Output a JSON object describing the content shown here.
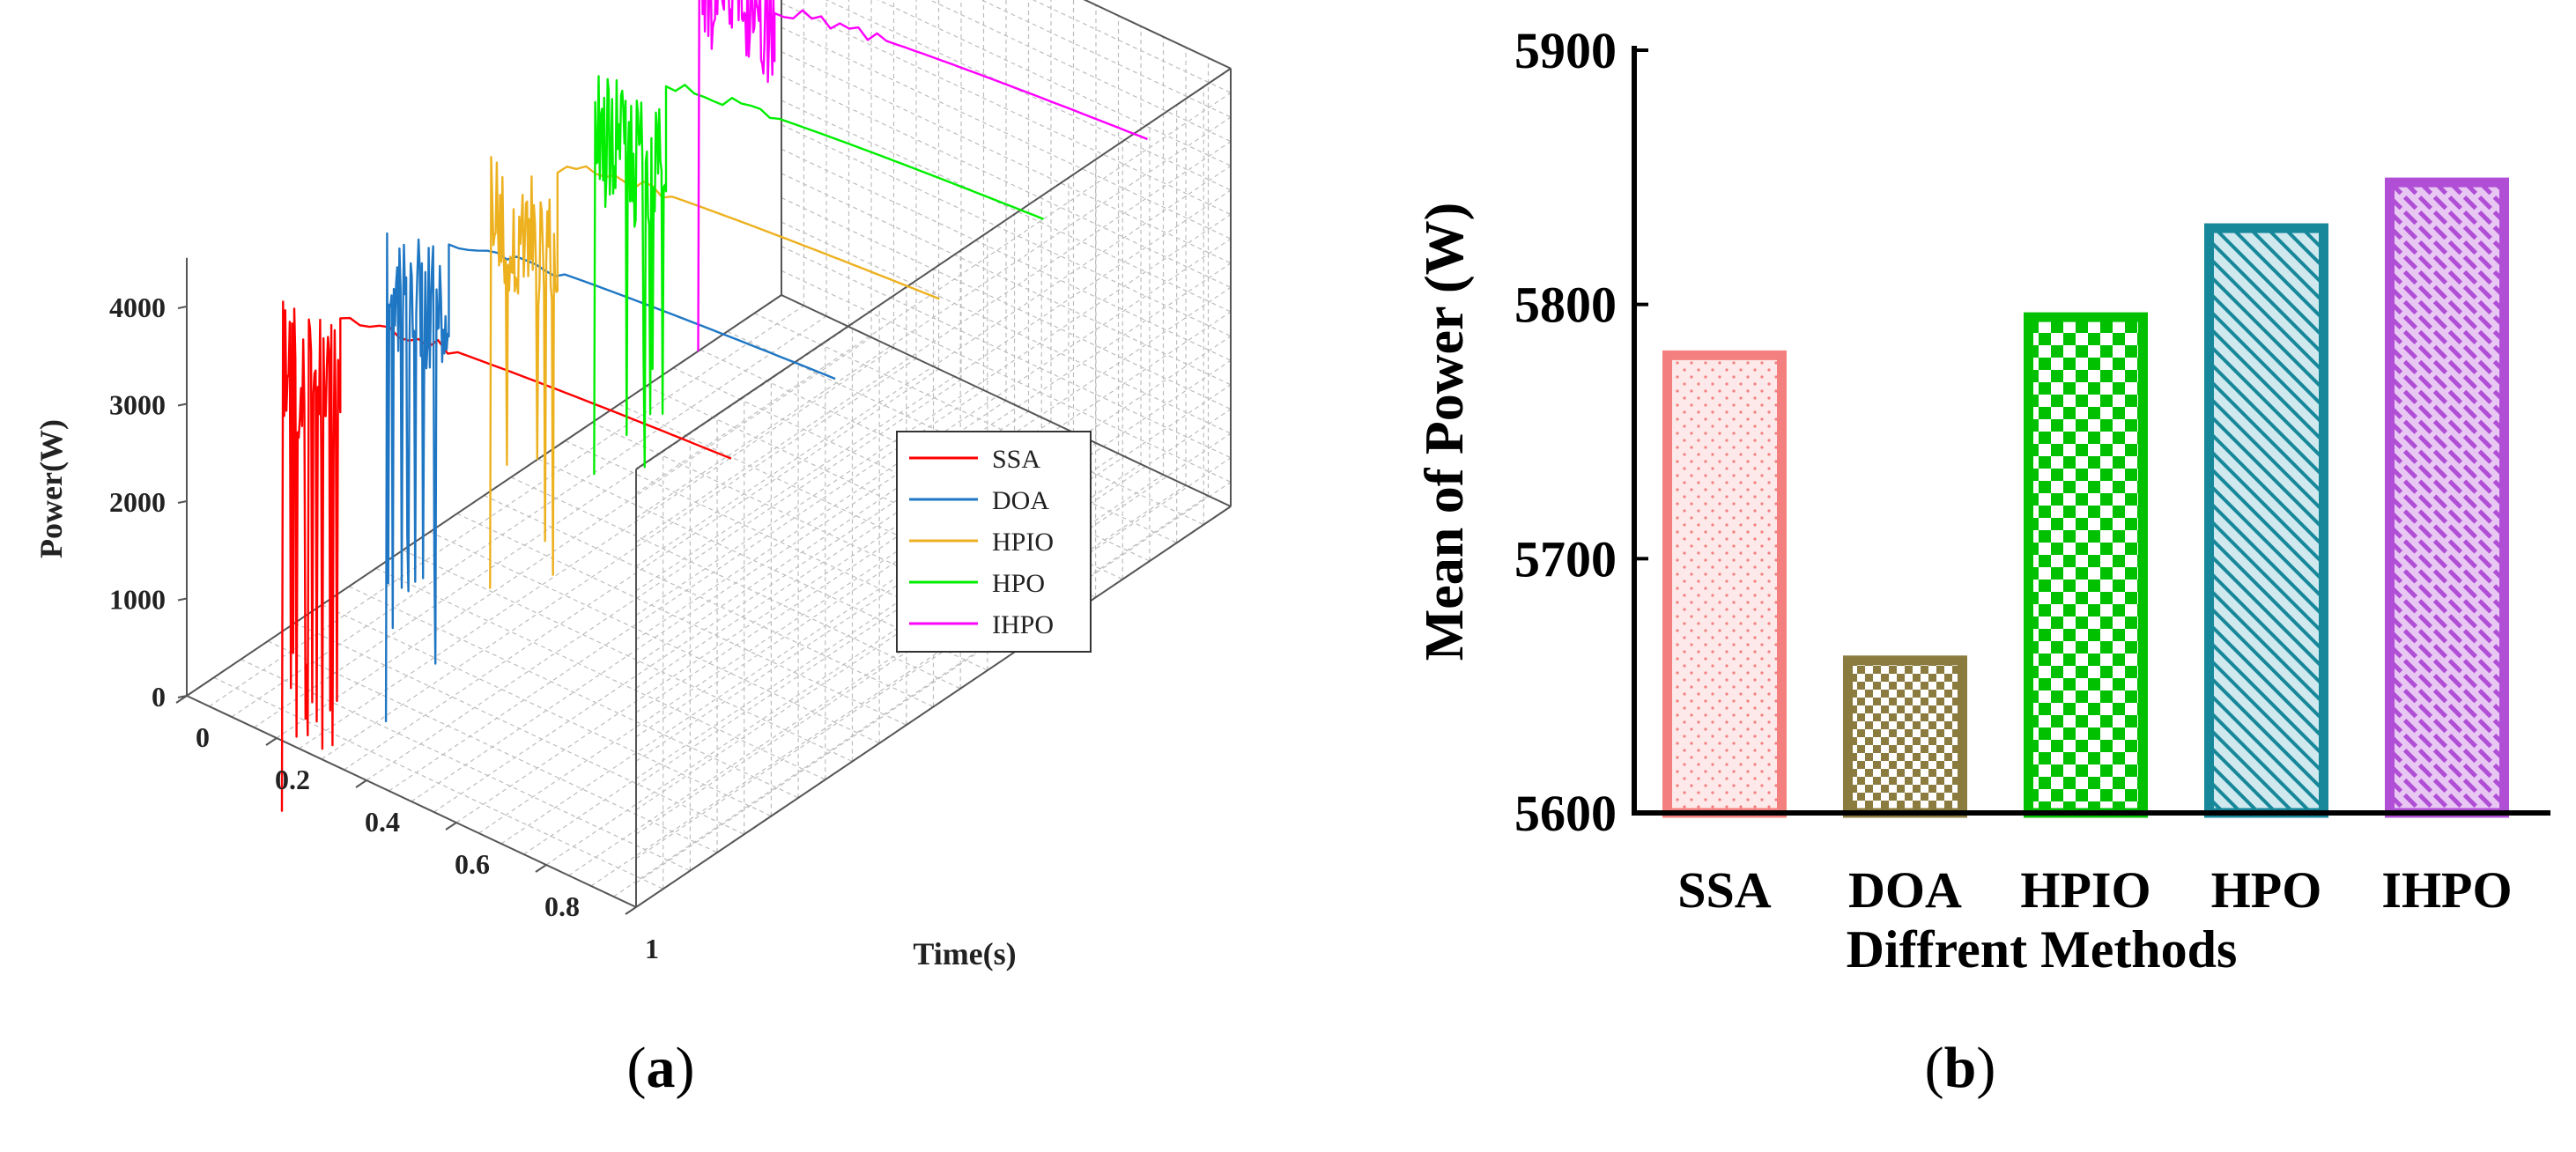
{
  "panels": {
    "a": {
      "caption_open": "(",
      "caption_letter": "a",
      "caption_close": ")"
    },
    "b": {
      "caption_open": "(",
      "caption_letter": "b",
      "caption_close": ")"
    }
  },
  "chart_data": [
    {
      "type": "line",
      "panel": "a",
      "title": "",
      "xlabel": "Time(s)",
      "ylabel": "Power(W)",
      "xlim": [
        0,
        1
      ],
      "zlim": [
        0,
        4000
      ],
      "x_ticks": [
        "0",
        "0.2",
        "0.4",
        "0.6",
        "0.8",
        "1"
      ],
      "z_ticks": [
        "0",
        "1000",
        "2000",
        "3000",
        "4000"
      ],
      "legend": [
        "SSA",
        "DOA",
        "HPIO",
        "HPO",
        "IHPO"
      ],
      "legend_position": "right",
      "series": [
        {
          "name": "SSA",
          "color": "#ff0000",
          "min_dip": -1850,
          "settle_time": 0.13,
          "steady_value": 3950
        },
        {
          "name": "DOA",
          "color": "#1f77c4",
          "min_dip": -1650,
          "settle_time": 0.14,
          "steady_value": 4050
        },
        {
          "name": "HPIO",
          "color": "#edb120",
          "min_dip": -1000,
          "settle_time": 0.15,
          "steady_value": 4150
        },
        {
          "name": "HPO",
          "color": "#00ee00",
          "min_dip": -550,
          "settle_time": 0.16,
          "steady_value": 4250
        },
        {
          "name": "IHPO",
          "color": "#ff00ff",
          "min_dip": 0,
          "settle_time": 0.17,
          "steady_value": 4350
        }
      ]
    },
    {
      "type": "bar",
      "panel": "b",
      "title": "",
      "xlabel": "Diffrent Methods",
      "ylabel": "Mean of Power (W)",
      "categories": [
        "SSA",
        "DOA",
        "HPIO",
        "HPO",
        "IHPO"
      ],
      "values": [
        5780,
        5660,
        5795,
        5830,
        5848
      ],
      "ylim": [
        5600,
        5900
      ],
      "y_ticks": [
        "5600",
        "5700",
        "5800",
        "5900"
      ],
      "colors": [
        "#f47f7f",
        "#8b7b3e",
        "#00c000",
        "#17879a",
        "#b04fd6"
      ],
      "patterns": [
        "dots",
        "checker",
        "checker",
        "diagonal",
        "weave"
      ]
    }
  ]
}
